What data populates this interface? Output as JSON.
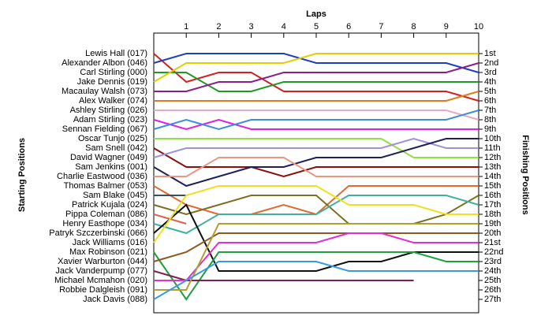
{
  "chart_data": {
    "type": "lap",
    "title": "Laps",
    "y_title": "Starting Positions",
    "y2_title": "Finishing Positions",
    "x": [
      0,
      1,
      2,
      3,
      4,
      5,
      6,
      7,
      8,
      9,
      10
    ],
    "xlim": [
      0,
      10
    ],
    "xticks": [
      1,
      2,
      3,
      4,
      5,
      6,
      7,
      8,
      9,
      10
    ],
    "ylim": [
      27,
      1
    ],
    "y2lim": [
      27,
      1
    ],
    "y2ticks": [
      {
        "value": 1,
        "label": "1st"
      },
      {
        "value": 2,
        "label": "2nd"
      },
      {
        "value": 3,
        "label": "3rd"
      },
      {
        "value": 4,
        "label": "4th"
      },
      {
        "value": 5,
        "label": "5th"
      },
      {
        "value": 6,
        "label": "6th"
      },
      {
        "value": 7,
        "label": "7th"
      },
      {
        "value": 8,
        "label": "8th"
      },
      {
        "value": 9,
        "label": "9th"
      },
      {
        "value": 10,
        "label": "10th"
      },
      {
        "value": 11,
        "label": "11th"
      },
      {
        "value": 12,
        "label": "12th"
      },
      {
        "value": 13,
        "label": "13th"
      },
      {
        "value": 14,
        "label": "14th"
      },
      {
        "value": 15,
        "label": "15th"
      },
      {
        "value": 16,
        "label": "16th"
      },
      {
        "value": 17,
        "label": "17th"
      },
      {
        "value": 18,
        "label": "18th"
      },
      {
        "value": 19,
        "label": "19th"
      },
      {
        "value": 20,
        "label": "20th"
      },
      {
        "value": 21,
        "label": "21st"
      },
      {
        "value": 22,
        "label": "22nd"
      },
      {
        "value": 23,
        "label": "23rd"
      },
      {
        "value": 24,
        "label": "24th"
      },
      {
        "value": 25,
        "label": "25th"
      },
      {
        "value": 26,
        "label": "26th"
      },
      {
        "value": 27,
        "label": "27th"
      }
    ],
    "series": [
      {
        "name": "Lewis Hall (017)",
        "color": "#d42020",
        "values": [
          1,
          4,
          3,
          3,
          5,
          5,
          5,
          5,
          5,
          5,
          6
        ]
      },
      {
        "name": "Alexander Albon (046)",
        "color": "#1f3fbf",
        "values": [
          2,
          1,
          1,
          1,
          1,
          2,
          2,
          2,
          2,
          2,
          3
        ]
      },
      {
        "name": "Carl Stirling (000)",
        "color": "#1f9a2a",
        "values": [
          3,
          3,
          5,
          5,
          4,
          4,
          4,
          4,
          4,
          4,
          4
        ]
      },
      {
        "name": "Jake Dennis (019)",
        "color": "#e0d000",
        "values": [
          4,
          2,
          2,
          2,
          2,
          1,
          1,
          1,
          1,
          1,
          1
        ]
      },
      {
        "name": "Macaulay Walsh (073)",
        "color": "#8a1f8a",
        "values": [
          5,
          5,
          4,
          4,
          3,
          3,
          3,
          3,
          3,
          3,
          2
        ]
      },
      {
        "name": "Alex Walker (074)",
        "color": "#e07b20",
        "values": [
          6,
          6,
          6,
          6,
          6,
          6,
          6,
          6,
          6,
          6,
          5
        ]
      },
      {
        "name": "Ashley Stirling (026)",
        "color": "#e8a8c8",
        "values": [
          7,
          7,
          7,
          7,
          7,
          7,
          7,
          7,
          7,
          7,
          8
        ]
      },
      {
        "name": "Adam Stirling (023)",
        "color": "#e020e0",
        "values": [
          8,
          9,
          8,
          9,
          9,
          9,
          9,
          9,
          9,
          9,
          9
        ]
      },
      {
        "name": "Sennan Fielding (067)",
        "color": "#3a8ee0",
        "values": [
          9,
          8,
          9,
          8,
          8,
          8,
          8,
          8,
          8,
          8,
          7
        ]
      },
      {
        "name": "Oscar Tunjo (025)",
        "color": "#90e040",
        "values": [
          10,
          10,
          10,
          10,
          10,
          10,
          10,
          10,
          12,
          12,
          12
        ]
      },
      {
        "name": "Sam Snell (042)",
        "color": "#8a1010",
        "values": [
          11,
          13,
          13,
          13,
          14,
          13,
          13,
          13,
          13,
          13,
          13
        ]
      },
      {
        "name": "David Wagner (049)",
        "color": "#a090d8",
        "values": [
          12,
          11,
          11,
          11,
          11,
          11,
          11,
          11,
          10,
          11,
          11
        ]
      },
      {
        "name": "Sam Jenkins (001)",
        "color": "#20205a",
        "values": [
          13,
          15,
          14,
          13,
          13,
          12,
          12,
          12,
          11,
          10,
          10
        ]
      },
      {
        "name": "Charlie Eastwood (036)",
        "color": "#e89880",
        "values": [
          14,
          14,
          12,
          12,
          12,
          14,
          14,
          14,
          14,
          14,
          14
        ]
      },
      {
        "name": "Thomas Balmer (053)",
        "color": "#e06a30",
        "values": [
          15,
          17,
          18,
          18,
          17,
          18,
          15,
          15,
          15,
          15,
          15
        ]
      },
      {
        "name": "Sam Blake (045)",
        "color": "#3a5060",
        "values": [
          16,
          16,
          null,
          null,
          null,
          null,
          null,
          null,
          null,
          null,
          null
        ]
      },
      {
        "name": "Patrick Kujala (024)",
        "color": "#7a7020",
        "values": [
          17,
          18,
          17,
          16,
          16,
          16,
          19,
          19,
          19,
          18,
          16
        ]
      },
      {
        "name": "Pippa Coleman (086)",
        "color": "#e06050",
        "values": [
          18,
          19,
          null,
          null,
          null,
          null,
          null,
          null,
          null,
          null,
          null
        ]
      },
      {
        "name": "Henry Easthope (034)",
        "color": "#40b0a0",
        "values": [
          19,
          20,
          18,
          18,
          18,
          18,
          16,
          16,
          16,
          16,
          17
        ]
      },
      {
        "name": "Patryk Szczerbinski (066)",
        "color": "#101010",
        "values": [
          20,
          17,
          24,
          24,
          24,
          24,
          23,
          23,
          22,
          22,
          22
        ]
      },
      {
        "name": "Jack Williams (016)",
        "color": "#f0e020",
        "values": [
          21,
          16,
          15,
          15,
          15,
          15,
          17,
          17,
          17,
          18,
          18
        ]
      },
      {
        "name": "Max Robinson (021)",
        "color": "#20a040",
        "values": [
          22,
          27,
          22,
          22,
          22,
          22,
          22,
          22,
          22,
          23,
          23
        ]
      },
      {
        "name": "Xavier Warburton (044)",
        "color": "#8a5a20",
        "values": [
          23,
          22,
          20,
          20,
          20,
          20,
          20,
          20,
          20,
          20,
          20
        ]
      },
      {
        "name": "Jack Vanderpump (077)",
        "color": "#802050",
        "values": [
          24,
          25,
          25,
          25,
          25,
          25,
          25,
          25,
          25,
          null,
          null
        ]
      },
      {
        "name": "Michael Mcmahon (020)",
        "color": "#e030d0",
        "values": [
          25,
          25,
          21,
          21,
          21,
          21,
          20,
          20,
          21,
          21,
          21
        ]
      },
      {
        "name": "Robbie Dalgleish (091)",
        "color": "#b0a030",
        "values": [
          26,
          26,
          19,
          19,
          19,
          19,
          19,
          19,
          19,
          19,
          19
        ]
      },
      {
        "name": "Jack Davis (088)",
        "color": "#3a9ae0",
        "values": [
          27,
          25,
          23,
          23,
          23,
          23,
          24,
          24,
          24,
          24,
          24
        ]
      }
    ]
  }
}
